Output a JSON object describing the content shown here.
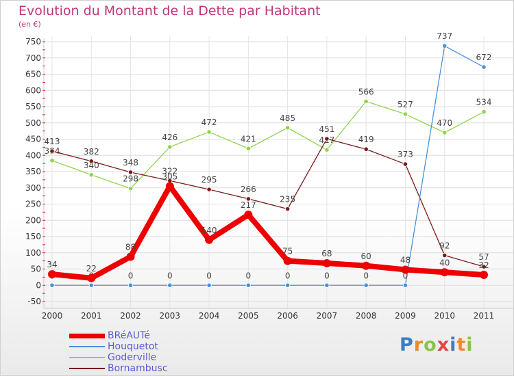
{
  "title": "Evolution du Montant de la Dette par Habitant",
  "unit_label": "(en €)",
  "brand": {
    "letters": [
      "P",
      "r",
      "o",
      "x",
      "i",
      "t",
      "i"
    ],
    "colors": [
      "#3a7fc5",
      "#f08a24",
      "#8bc34a",
      "#e04646",
      "#3a7fc5",
      "#f08a24",
      "#8bc34a"
    ]
  },
  "chart_data": {
    "type": "line",
    "title": "Evolution du Montant de la Dette par Habitant",
    "ylabel": "(en €)",
    "x": [
      "2000",
      "2001",
      "2002",
      "2003",
      "2004",
      "2005",
      "2006",
      "2007",
      "2008",
      "2009",
      "2010",
      "2011"
    ],
    "ylim": [
      -50,
      750
    ],
    "yticks": [
      -50,
      0,
      50,
      100,
      150,
      200,
      250,
      300,
      350,
      400,
      450,
      500,
      550,
      600,
      650,
      700,
      750
    ],
    "grid": true,
    "legend_position": "bottom-left",
    "series": [
      {
        "name": "Goderville",
        "color": "#8fd44e",
        "stroke": 1.3,
        "marker": 3.2,
        "values": [
          384,
          340,
          298,
          426,
          472,
          421,
          485,
          417,
          566,
          527,
          470,
          534
        ],
        "labels": [
          "384",
          "340",
          "298",
          "426",
          "472",
          "421",
          "485",
          "417",
          "566",
          "527",
          "470",
          "534"
        ]
      },
      {
        "name": "Bornambusc",
        "color": "#7a1a1a",
        "stroke": 1.3,
        "marker": 3.2,
        "values": [
          413,
          382,
          348,
          322,
          295,
          266,
          235,
          451,
          419,
          373,
          92,
          57
        ],
        "labels": [
          "413",
          "382",
          "348",
          "322",
          "295",
          "266",
          "235",
          "451",
          "419",
          "373",
          "92",
          "57"
        ]
      },
      {
        "name": "Houquetot",
        "color": "#4a90d9",
        "stroke": 1.3,
        "marker": 3.2,
        "values": [
          0,
          0,
          0,
          0,
          0,
          0,
          0,
          0,
          0,
          0,
          737,
          672
        ],
        "labels": [
          "0",
          "0",
          "0",
          "0",
          "0",
          "0",
          "0",
          "0",
          "0",
          "0",
          "737",
          "672"
        ]
      },
      {
        "name": "BRéAUTé",
        "color": "#ee0000",
        "stroke": 8,
        "marker": 6,
        "values": [
          34,
          22,
          88,
          305,
          140,
          217,
          75,
          68,
          60,
          48,
          40,
          32
        ],
        "labels": [
          "34",
          "22",
          "88",
          "305",
          "140",
          "217",
          "75",
          "68",
          "60",
          "48",
          "40",
          "32"
        ]
      }
    ]
  },
  "legend": [
    {
      "label": "BRéAUTé",
      "color": "#ee0000",
      "thickness": 7
    },
    {
      "label": "Houquetot",
      "color": "#4a90d9",
      "thickness": 2
    },
    {
      "label": "Goderville",
      "color": "#8fd44e",
      "thickness": 2
    },
    {
      "label": "Bornambusc",
      "color": "#7a1a1a",
      "thickness": 2
    }
  ]
}
